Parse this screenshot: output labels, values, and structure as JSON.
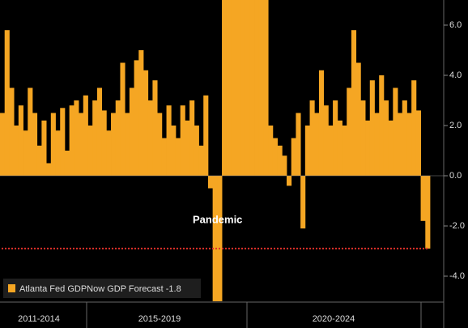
{
  "chart_data": {
    "type": "bar",
    "color": "#f5a623",
    "series": [
      {
        "name": "Atlanta Fed GDPNow GDP Forecast -1.8",
        "color": "#f5a623",
        "values": [
          2.5,
          5.8,
          3.5,
          2.0,
          2.8,
          1.8,
          3.5,
          2.5,
          1.2,
          2.2,
          0.5,
          2.5,
          1.8,
          2.7,
          1.0,
          2.8,
          3.0,
          2.5,
          3.2,
          2.0,
          3.0,
          3.5,
          2.6,
          1.8,
          2.5,
          3.0,
          4.5,
          2.5,
          3.5,
          4.6,
          5.0,
          4.2,
          3.0,
          3.8,
          2.5,
          1.5,
          2.8,
          2.0,
          1.5,
          2.8,
          2.2,
          3.0,
          2.0,
          1.2,
          3.2,
          -0.5,
          -5.0,
          -5.0,
          7.0,
          7.0,
          7.0,
          7.0,
          7.0,
          7.0,
          7.0,
          7.0,
          7.0,
          7.0,
          2.0,
          1.5,
          1.2,
          0.8,
          -0.4,
          1.5,
          2.5,
          -2.1,
          2.0,
          3.0,
          2.5,
          4.2,
          2.8,
          2.0,
          3.0,
          2.2,
          2.0,
          3.5,
          5.8,
          4.5,
          3.0,
          2.2,
          3.8,
          2.5,
          4.0,
          3.0,
          2.2,
          3.5,
          2.5,
          3.0,
          2.5,
          3.8,
          2.6,
          -1.8,
          -2.9
        ]
      }
    ],
    "periods": [
      "2011-2014",
      "2015-2019",
      "2020-2024"
    ],
    "ylim": [
      -5,
      7
    ],
    "yticks": [
      {
        "value": -4,
        "label": "-4.0"
      },
      {
        "value": -2,
        "label": "-2.0"
      },
      {
        "value": 0,
        "label": "0.0"
      },
      {
        "value": 2,
        "label": "2.0"
      },
      {
        "value": 4,
        "label": "4.0"
      },
      {
        "value": 6,
        "label": "6.0"
      }
    ],
    "reference_line": {
      "value": -2.9,
      "color": "#e0302a"
    },
    "annotation": "Pandemic",
    "legend": "bottom-left"
  }
}
